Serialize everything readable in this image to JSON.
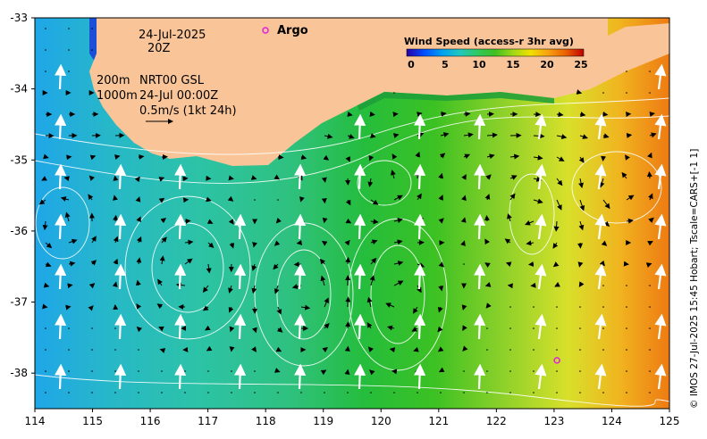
{
  "map": {
    "lon_ticks": [
      "114",
      "115",
      "116",
      "117",
      "118",
      "119",
      "120",
      "121",
      "122",
      "123",
      "124",
      "125"
    ],
    "lat_ticks": [
      "-33",
      "-34",
      "-35",
      "-36",
      "-37",
      "-38"
    ],
    "lon_range": [
      114,
      125
    ],
    "lat_range": [
      -38.5,
      -33
    ],
    "colors": {
      "land": "#f9c598",
      "coast_fill": "#1d9e3a",
      "vector": "#000000",
      "wind_arrow": "#ffffff",
      "contour": "#ffffff",
      "argo": "#e020e0"
    }
  },
  "annotations": {
    "date": "24-Jul-2025",
    "time": "20Z",
    "depth_200": "200m",
    "product": "NRT00 GSL",
    "depth_1000": "1000m",
    "analysis_time": "24-Jul 00:00Z",
    "scale_text": "0.5m/s (1kt 24h)"
  },
  "argo": {
    "label": "Argo",
    "floats": [
      {
        "lon": 123.05,
        "lat": -37.82
      }
    ]
  },
  "legend": {
    "title": "Wind Speed (access-r 3hr avg)",
    "ticks": [
      "0",
      "5",
      "10",
      "15",
      "20",
      "25"
    ],
    "colors": [
      "#2a00a8",
      "#0050ff",
      "#00a0f0",
      "#20c8c0",
      "#30c860",
      "#40c020",
      "#a0d818",
      "#f0e000",
      "#f8a010",
      "#e86000",
      "#c00000"
    ]
  },
  "credit": "© IMOS 27-Jul-2025 15:45 Hobart; Tscale=CARS+[-1 1]"
}
